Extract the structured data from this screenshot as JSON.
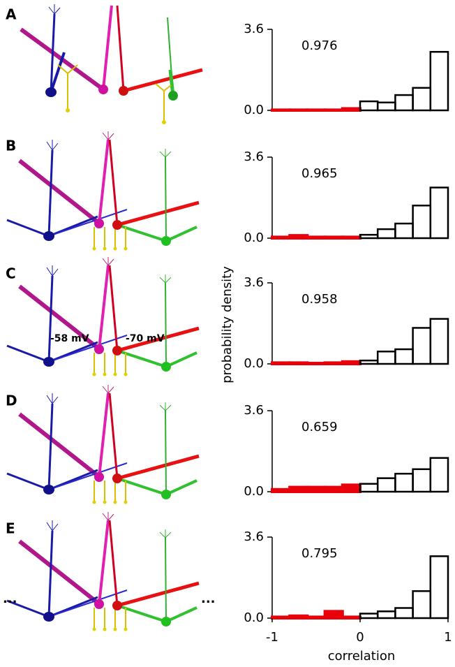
{
  "panels": [
    {
      "label": "A"
    },
    {
      "label": "B"
    },
    {
      "label": "C"
    },
    {
      "label": "D"
    },
    {
      "label": "E"
    }
  ],
  "labels": {
    "left_voltage": "-58 mV",
    "right_voltage": "-70 mV",
    "ellipsis_left": "...",
    "ellipsis_right": "..."
  },
  "chart_data": [
    {
      "type": "histogram",
      "annotation": "0.976",
      "bins": [
        -1,
        -0.8,
        -0.6,
        -0.4,
        -0.2,
        0,
        0.2,
        0.4,
        0.6,
        0.8,
        1
      ],
      "counts": [
        0.02,
        0.02,
        0.02,
        0.02,
        0.08,
        0.4,
        0.35,
        0.68,
        1.0,
        2.6
      ],
      "negative_color": "#e8000b",
      "positive_color": "#000000",
      "xlim": [
        -1,
        1
      ],
      "ylim": [
        0,
        3.6
      ],
      "yticks": [
        {
          "value": 0,
          "label": "0.0"
        },
        3.6
      ]
    },
    {
      "type": "histogram",
      "annotation": "0.965",
      "bins": [
        -1,
        -0.8,
        -0.6,
        -0.4,
        -0.2,
        0,
        0.2,
        0.4,
        0.6,
        0.8,
        1
      ],
      "counts": [
        0.05,
        0.12,
        0.05,
        0.05,
        0.05,
        0.15,
        0.4,
        0.65,
        1.45,
        2.25
      ],
      "negative_color": "#e8000b",
      "positive_color": "#000000",
      "xlim": [
        -1,
        1
      ],
      "ylim": [
        0,
        3.6
      ],
      "yticks": [
        {
          "value": 0,
          "label": "0.0"
        },
        3.6
      ]
    },
    {
      "type": "histogram",
      "annotation": "0.958",
      "ylabel": "probability density",
      "bins": [
        -1,
        -0.8,
        -0.6,
        -0.4,
        -0.2,
        0,
        0.2,
        0.4,
        0.6,
        0.8,
        1
      ],
      "counts": [
        0.05,
        0.05,
        0.03,
        0.05,
        0.1,
        0.15,
        0.55,
        0.65,
        1.6,
        2.0
      ],
      "negative_color": "#e8000b",
      "positive_color": "#000000",
      "xlim": [
        -1,
        1
      ],
      "ylim": [
        0,
        3.6
      ],
      "yticks": [
        {
          "value": 0,
          "label": "0.0"
        },
        3.6
      ]
    },
    {
      "type": "histogram",
      "annotation": "0.659",
      "bins": [
        -1,
        -0.8,
        -0.6,
        -0.4,
        -0.2,
        0,
        0.2,
        0.4,
        0.6,
        0.8,
        1
      ],
      "counts": [
        0.1,
        0.2,
        0.2,
        0.2,
        0.3,
        0.35,
        0.6,
        0.8,
        1.0,
        1.5
      ],
      "negative_color": "#e8000b",
      "positive_color": "#000000",
      "xlim": [
        -1,
        1
      ],
      "ylim": [
        0,
        3.6
      ],
      "yticks": [
        {
          "value": 0,
          "label": "0.0"
        },
        3.6
      ]
    },
    {
      "type": "histogram",
      "annotation": "0.795",
      "xlabel": "correlation",
      "bins": [
        -1,
        -0.8,
        -0.6,
        -0.4,
        -0.2,
        0,
        0.2,
        0.4,
        0.6,
        0.8,
        1
      ],
      "counts": [
        0.05,
        0.1,
        0.05,
        0.3,
        0.05,
        0.2,
        0.3,
        0.45,
        1.2,
        2.75
      ],
      "negative_color": "#e8000b",
      "positive_color": "#000000",
      "xlim": [
        -1,
        1
      ],
      "ylim": [
        0,
        3.6
      ],
      "yticks": [
        {
          "value": 0,
          "label": "0.0"
        },
        3.6
      ],
      "xticks": [
        -1,
        0,
        1
      ]
    }
  ]
}
